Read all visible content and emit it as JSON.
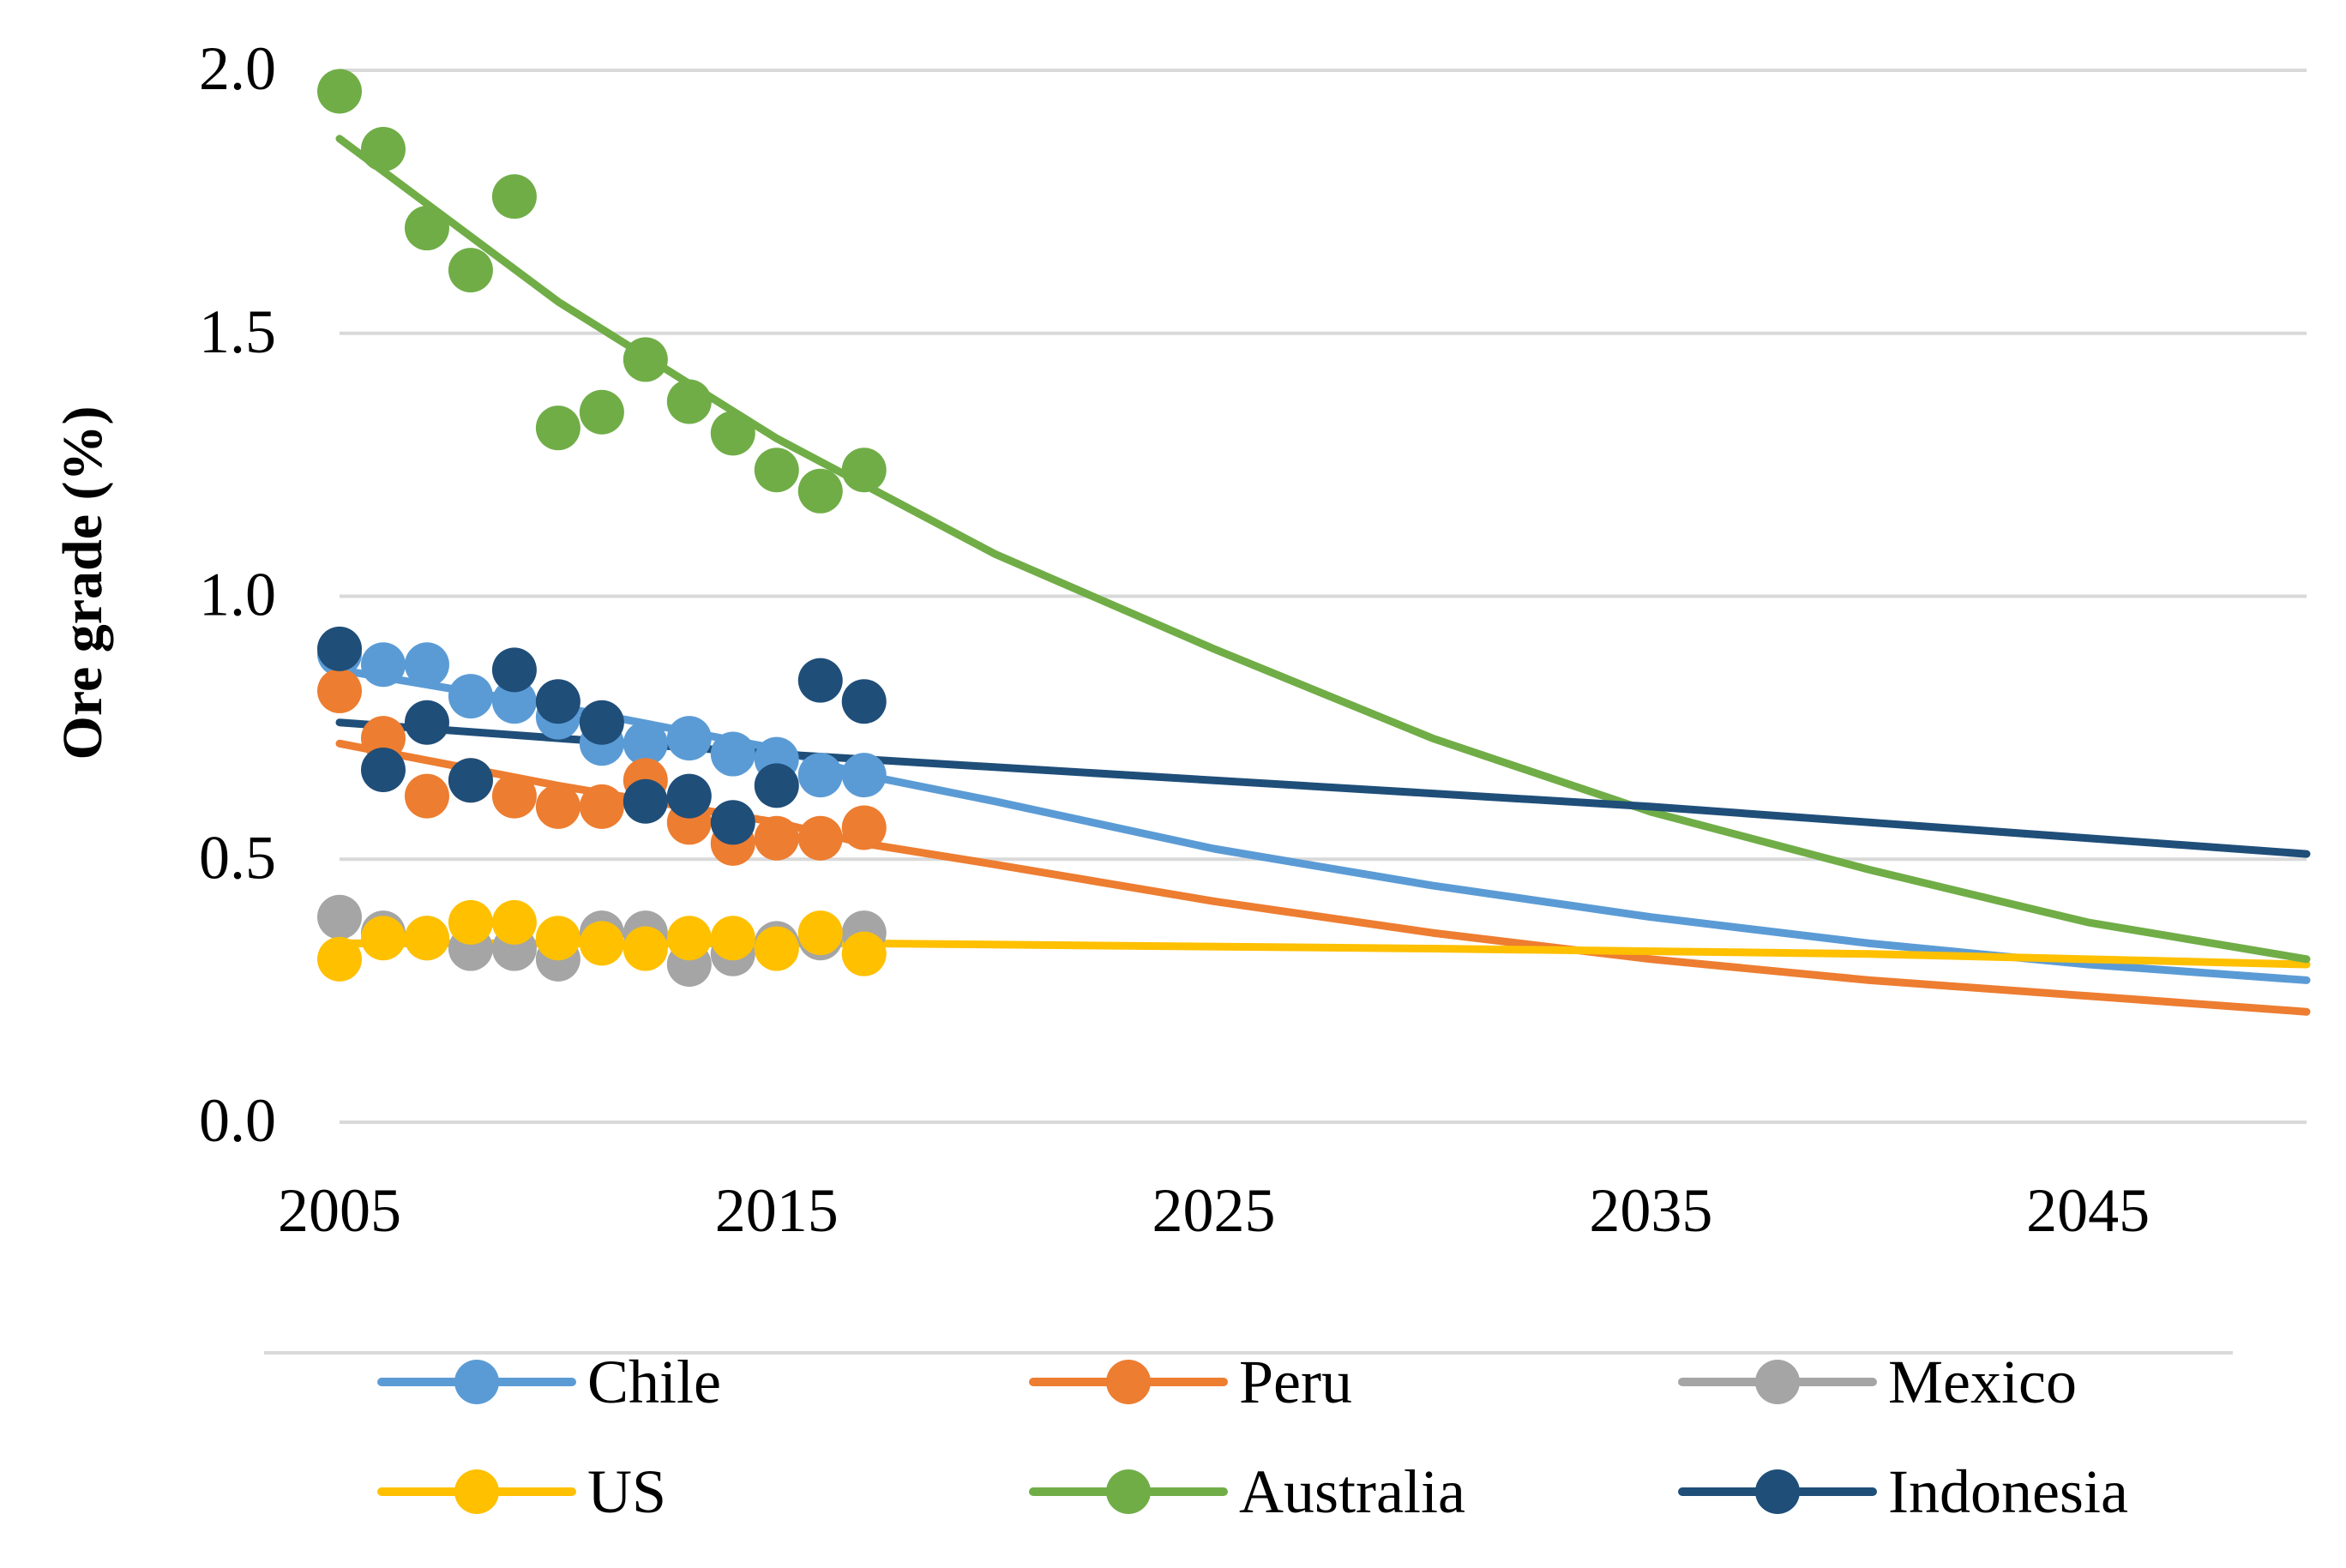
{
  "chart_data": {
    "type": "scatter",
    "title": "",
    "xlabel": "",
    "ylabel": "Ore grade (%)",
    "xlim": [
      2005,
      2050
    ],
    "ylim": [
      0,
      2.0
    ],
    "x_ticks": [
      "2005",
      "2015",
      "2025",
      "2035",
      "2045"
    ],
    "y_ticks": [
      "0.0",
      "0.5",
      "1.0",
      "1.5",
      "2.0"
    ],
    "grid": true,
    "legend_position": "bottom",
    "series": [
      {
        "name": "Chile",
        "color": "#5B9BD5",
        "points": {
          "x": [
            2005,
            2006,
            2007,
            2008,
            2009,
            2010,
            2011,
            2012,
            2013,
            2014,
            2015,
            2016,
            2017
          ],
          "y": [
            0.89,
            0.87,
            0.87,
            0.81,
            0.8,
            0.77,
            0.72,
            0.72,
            0.73,
            0.7,
            0.69,
            0.66,
            0.66
          ]
        },
        "trend": {
          "x": [
            2005,
            2010,
            2015,
            2017,
            2020,
            2025,
            2030,
            2035,
            2040,
            2045,
            2050
          ],
          "y": [
            0.86,
            0.79,
            0.71,
            0.66,
            0.61,
            0.52,
            0.45,
            0.39,
            0.34,
            0.3,
            0.27
          ]
        }
      },
      {
        "name": "Peru",
        "color": "#ED7D31",
        "points": {
          "x": [
            2005,
            2006,
            2007,
            2008,
            2009,
            2010,
            2011,
            2012,
            2013,
            2014,
            2015,
            2016,
            2017
          ],
          "y": [
            0.82,
            0.73,
            0.62,
            0.65,
            0.62,
            0.6,
            0.6,
            0.65,
            0.57,
            0.53,
            0.54,
            0.54,
            0.56
          ]
        },
        "trend": {
          "x": [
            2005,
            2010,
            2015,
            2017,
            2020,
            2025,
            2030,
            2035,
            2040,
            2045,
            2050
          ],
          "y": [
            0.72,
            0.64,
            0.57,
            0.53,
            0.49,
            0.42,
            0.36,
            0.31,
            0.27,
            0.24,
            0.21
          ]
        }
      },
      {
        "name": "Mexico",
        "color": "#A5A5A5",
        "points": {
          "x": [
            2005,
            2006,
            2007,
            2008,
            2009,
            2010,
            2011,
            2012,
            2013,
            2014,
            2015,
            2016,
            2017
          ],
          "y": [
            0.39,
            0.36,
            0.35,
            0.33,
            0.33,
            0.31,
            0.36,
            0.36,
            0.3,
            0.32,
            0.34,
            0.35,
            0.36
          ]
        },
        "trend": {
          "x": [
            2005,
            2017
          ],
          "y": [
            0.34,
            0.34
          ]
        }
      },
      {
        "name": "US",
        "color": "#FFC000",
        "points": {
          "x": [
            2005,
            2006,
            2007,
            2008,
            2009,
            2010,
            2011,
            2012,
            2013,
            2014,
            2015,
            2016,
            2017
          ],
          "y": [
            0.31,
            0.35,
            0.35,
            0.38,
            0.38,
            0.35,
            0.34,
            0.33,
            0.35,
            0.35,
            0.33,
            0.36,
            0.32
          ]
        },
        "trend": {
          "x": [
            2005,
            2017,
            2030,
            2040,
            2050
          ],
          "y": [
            0.34,
            0.34,
            0.33,
            0.32,
            0.3
          ]
        }
      },
      {
        "name": "Australia",
        "color": "#70AD47",
        "points": {
          "x": [
            2005,
            2006,
            2007,
            2008,
            2009,
            2010,
            2011,
            2012,
            2013,
            2014,
            2015,
            2016,
            2017
          ],
          "y": [
            1.96,
            1.85,
            1.7,
            1.62,
            1.76,
            1.32,
            1.35,
            1.45,
            1.37,
            1.31,
            1.24,
            1.2,
            1.24
          ]
        },
        "trend": {
          "x": [
            2005,
            2010,
            2015,
            2020,
            2025,
            2030,
            2035,
            2040,
            2045,
            2050
          ],
          "y": [
            1.87,
            1.56,
            1.3,
            1.08,
            0.9,
            0.73,
            0.59,
            0.48,
            0.38,
            0.31
          ]
        }
      },
      {
        "name": "Indonesia",
        "color": "#1F4E79",
        "points": {
          "x": [
            2005,
            2006,
            2007,
            2008,
            2009,
            2010,
            2011,
            2012,
            2013,
            2014,
            2015,
            2016,
            2017
          ],
          "y": [
            0.9,
            0.67,
            0.76,
            0.65,
            0.86,
            0.8,
            0.76,
            0.61,
            0.62,
            0.57,
            0.64,
            0.84,
            0.8
          ]
        },
        "trend": {
          "x": [
            2005,
            2015,
            2025,
            2035,
            2050
          ],
          "y": [
            0.76,
            0.7,
            0.65,
            0.6,
            0.51
          ]
        }
      }
    ]
  }
}
